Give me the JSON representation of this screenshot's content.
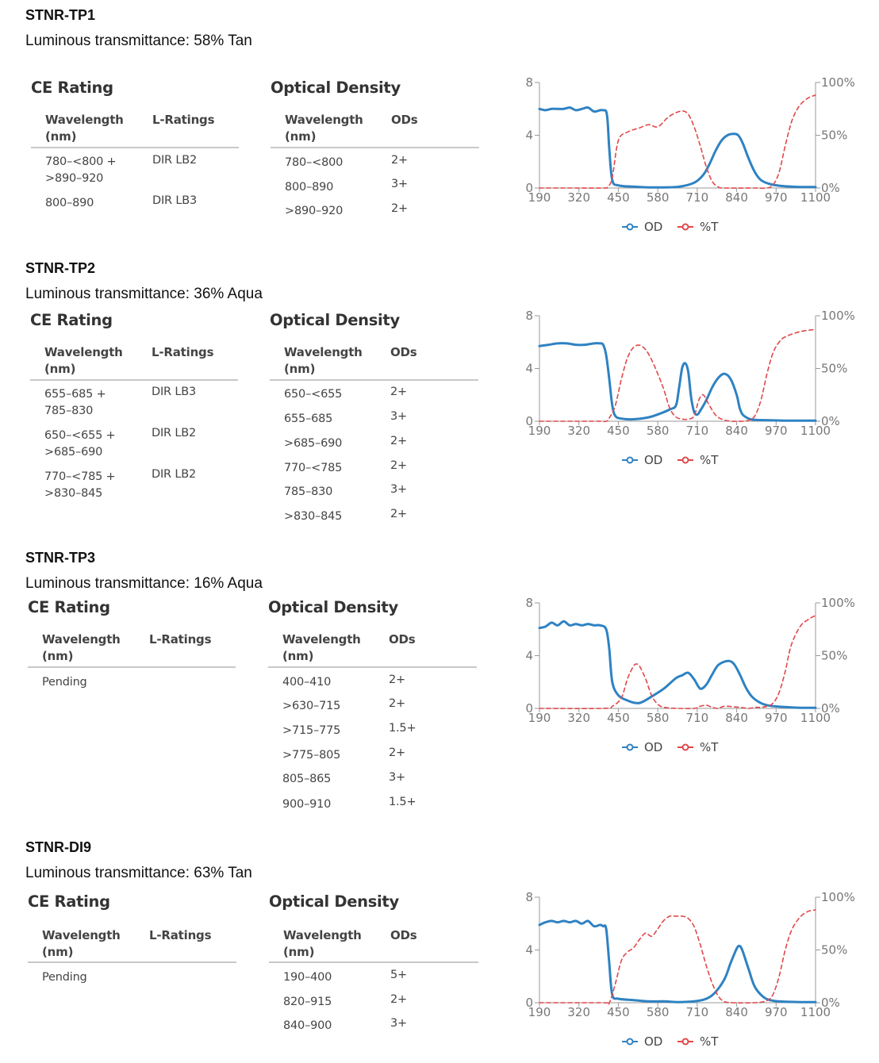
{
  "products": [
    {
      "name": "STNR-TP1",
      "transmittance": "Luminous transmittance: 58% Tan",
      "ce_heading": "CE Rating",
      "od_heading": "Optical Density",
      "ce_columns": [
        "Wavelength (nm)",
        "L-Ratings"
      ],
      "od_columns": [
        "Wavelength (nm)",
        "ODs"
      ],
      "ce_rows": [
        {
          "wavelength": "780–<800 + >890–920",
          "rating": "DIR LB2"
        },
        {
          "wavelength": "800–890",
          "rating": "DIR LB3"
        }
      ],
      "od_rows": [
        {
          "wavelength": "780–<800",
          "od": "2+"
        },
        {
          "wavelength": "800–890",
          "od": "3+"
        },
        {
          "wavelength": ">890–920",
          "od": "2+"
        }
      ]
    },
    {
      "name": "STNR-TP2",
      "transmittance": "Luminous transmittance: 36% Aqua",
      "ce_heading": "CE Rating",
      "od_heading": "Optical Density",
      "ce_columns": [
        "Wavelength (nm)",
        "L-Ratings"
      ],
      "od_columns": [
        "Wavelength (nm)",
        "ODs"
      ],
      "ce_rows": [
        {
          "wavelength": "655–685 + 785–830",
          "rating": "DIR LB3"
        },
        {
          "wavelength": "650–<655 + >685–690",
          "rating": "DIR LB2"
        },
        {
          "wavelength": "770–<785 + >830–845",
          "rating": "DIR LB2"
        }
      ],
      "od_rows": [
        {
          "wavelength": "650–<655",
          "od": "2+"
        },
        {
          "wavelength": "655–685",
          "od": "3+"
        },
        {
          "wavelength": ">685–690",
          "od": "2+"
        },
        {
          "wavelength": "770–<785",
          "od": "2+"
        },
        {
          "wavelength": "785–830",
          "od": "3+"
        },
        {
          "wavelength": ">830–845",
          "od": "2+"
        }
      ]
    },
    {
      "name": "STNR-TP3",
      "transmittance": "Luminous transmittance: 16% Aqua",
      "ce_heading": "CE Rating",
      "od_heading": "Optical Density",
      "ce_columns": [
        "Wavelength (nm)",
        "L-Ratings"
      ],
      "od_columns": [
        "Wavelength (nm)",
        "ODs"
      ],
      "ce_rows": [
        {
          "wavelength": "Pending",
          "rating": ""
        }
      ],
      "od_rows": [
        {
          "wavelength": "400–410",
          "od": "2+"
        },
        {
          "wavelength": ">630–715",
          "od": "2+"
        },
        {
          "wavelength": ">715–775",
          "od": "1.5+"
        },
        {
          "wavelength": ">775–805",
          "od": "2+"
        },
        {
          "wavelength": "805–865",
          "od": "3+"
        },
        {
          "wavelength": "900–910",
          "od": "1.5+"
        }
      ]
    },
    {
      "name": "STNR-DI9",
      "transmittance": "Luminous transmittance: 63% Tan",
      "ce_heading": "CE Rating",
      "od_heading": "Optical Density",
      "ce_columns": [
        "Wavelength (nm)",
        "L-Ratings"
      ],
      "od_columns": [
        "Wavelength (nm)",
        "ODs"
      ],
      "ce_rows": [
        {
          "wavelength": "Pending",
          "rating": ""
        }
      ],
      "od_rows": [
        {
          "wavelength": "190–400",
          "od": "5+"
        },
        {
          "wavelength": "820–915",
          "od": "2+"
        },
        {
          "wavelength": "840–900",
          "od": "3+"
        }
      ]
    }
  ],
  "chart_data": [
    {
      "type": "line",
      "product": "STNR-TP1",
      "x_ticks": [
        "190",
        "320",
        "450",
        "580",
        "710",
        "840",
        "970",
        "1100"
      ],
      "xlim": [
        190,
        1100
      ],
      "y_left_ticks": [
        "0",
        "4",
        "8"
      ],
      "y_left_lim": [
        0,
        8
      ],
      "y_right_ticks": [
        "0%",
        "50%",
        "100%"
      ],
      "y_right_lim": [
        0,
        100
      ],
      "legend": [
        "OD",
        "%T"
      ],
      "legend_position": "bottom-center",
      "colors": {
        "OD": "#2e82c3",
        "%T": "#e0484a"
      },
      "series": [
        {
          "name": "OD",
          "axis": "left",
          "x": [
            190,
            210,
            230,
            250,
            270,
            290,
            310,
            330,
            350,
            370,
            390,
            400,
            410,
            415,
            420,
            430,
            450,
            500,
            550,
            600,
            650,
            700,
            730,
            750,
            770,
            790,
            810,
            830,
            845,
            860,
            880,
            900,
            920,
            950,
            990,
            1050,
            1100
          ],
          "y": [
            6.0,
            5.9,
            6.0,
            6.0,
            6.0,
            6.1,
            5.9,
            6.0,
            6.1,
            5.8,
            5.9,
            5.9,
            5.8,
            5.0,
            3.0,
            0.6,
            0.2,
            0.1,
            0.05,
            0.05,
            0.1,
            0.4,
            1.0,
            1.8,
            2.8,
            3.6,
            4.0,
            4.1,
            4.0,
            3.4,
            2.2,
            1.2,
            0.6,
            0.3,
            0.15,
            0.08,
            0.08
          ]
        },
        {
          "name": "%T",
          "axis": "right",
          "x": [
            190,
            300,
            400,
            415,
            430,
            450,
            480,
            520,
            550,
            580,
            610,
            630,
            660,
            680,
            700,
            720,
            740,
            760,
            780,
            800,
            900,
            940,
            960,
            980,
            1000,
            1020,
            1040,
            1060,
            1080,
            1100
          ],
          "y": [
            0,
            0,
            0,
            1,
            10,
            45,
            53,
            57,
            60,
            58,
            66,
            70,
            73,
            70,
            58,
            40,
            20,
            6,
            1,
            0,
            0,
            0,
            3,
            15,
            40,
            62,
            75,
            82,
            86,
            88
          ]
        }
      ]
    },
    {
      "type": "line",
      "product": "STNR-TP2",
      "x_ticks": [
        "190",
        "320",
        "450",
        "580",
        "710",
        "840",
        "970",
        "1100"
      ],
      "xlim": [
        190,
        1100
      ],
      "y_left_ticks": [
        "0",
        "4",
        "8"
      ],
      "y_left_lim": [
        0,
        8
      ],
      "y_right_ticks": [
        "0%",
        "50%",
        "100%"
      ],
      "y_right_lim": [
        0,
        100
      ],
      "legend": [
        "OD",
        "%T"
      ],
      "legend_position": "bottom-center",
      "colors": {
        "OD": "#2e82c3",
        "%T": "#e0484a"
      },
      "series": [
        {
          "name": "OD",
          "axis": "left",
          "x": [
            190,
            220,
            250,
            280,
            310,
            340,
            370,
            390,
            400,
            410,
            420,
            430,
            440,
            460,
            500,
            550,
            590,
            620,
            640,
            650,
            660,
            670,
            680,
            690,
            700,
            710,
            720,
            740,
            760,
            780,
            800,
            820,
            840,
            850,
            860,
            880,
            900,
            950,
            1000,
            1050,
            1100
          ],
          "y": [
            5.7,
            5.8,
            5.9,
            5.9,
            5.8,
            5.8,
            5.9,
            5.9,
            5.8,
            5.0,
            3.2,
            1.2,
            0.4,
            0.2,
            0.15,
            0.3,
            0.6,
            0.9,
            1.2,
            2.5,
            4.0,
            4.4,
            3.8,
            1.8,
            0.7,
            0.5,
            0.8,
            1.6,
            2.6,
            3.3,
            3.6,
            3.2,
            2.0,
            1.0,
            0.5,
            0.2,
            0.1,
            0.08,
            0.05,
            0.05,
            0.05
          ]
        },
        {
          "name": "%T",
          "axis": "right",
          "x": [
            190,
            380,
            410,
            420,
            440,
            460,
            480,
            500,
            520,
            540,
            560,
            580,
            600,
            620,
            640,
            660,
            680,
            700,
            715,
            730,
            750,
            770,
            790,
            820,
            840,
            860,
            880,
            900,
            920,
            940,
            960,
            980,
            1000,
            1050,
            1100
          ],
          "y": [
            0,
            0,
            0,
            3,
            15,
            40,
            60,
            70,
            72,
            68,
            58,
            45,
            30,
            12,
            4,
            2,
            2,
            5,
            20,
            25,
            15,
            6,
            2,
            0,
            0,
            0,
            1,
            5,
            20,
            45,
            65,
            75,
            80,
            85,
            87
          ]
        }
      ]
    },
    {
      "type": "line",
      "product": "STNR-TP3",
      "x_ticks": [
        "190",
        "320",
        "450",
        "580",
        "710",
        "840",
        "970",
        "1100"
      ],
      "xlim": [
        190,
        1100
      ],
      "y_left_ticks": [
        "0",
        "4",
        "8"
      ],
      "y_left_lim": [
        0,
        8
      ],
      "y_right_ticks": [
        "0%",
        "50%",
        "100%"
      ],
      "y_right_lim": [
        0,
        100
      ],
      "legend": [
        "OD",
        "%T"
      ],
      "legend_position": "bottom-center",
      "colors": {
        "OD": "#2e82c3",
        "%T": "#e0484a"
      },
      "series": [
        {
          "name": "OD",
          "axis": "left",
          "x": [
            190,
            210,
            230,
            250,
            270,
            290,
            310,
            330,
            350,
            370,
            390,
            410,
            420,
            430,
            450,
            480,
            510,
            530,
            560,
            600,
            640,
            660,
            680,
            700,
            720,
            740,
            760,
            780,
            810,
            830,
            850,
            870,
            890,
            920,
            950,
            1000,
            1050,
            1100
          ],
          "y": [
            6.1,
            6.2,
            6.5,
            6.3,
            6.6,
            6.3,
            6.4,
            6.3,
            6.4,
            6.3,
            6.3,
            6.0,
            4.5,
            2.0,
            1.0,
            0.6,
            0.4,
            0.5,
            0.9,
            1.5,
            2.3,
            2.5,
            2.7,
            2.2,
            1.5,
            1.8,
            2.6,
            3.3,
            3.6,
            3.4,
            2.6,
            1.6,
            0.9,
            0.4,
            0.2,
            0.1,
            0.05,
            0.05
          ]
        },
        {
          "name": "%T",
          "axis": "right",
          "x": [
            190,
            400,
            430,
            460,
            480,
            500,
            510,
            520,
            540,
            560,
            580,
            600,
            650,
            700,
            720,
            740,
            760,
            780,
            800,
            850,
            880,
            900,
            920,
            940,
            960,
            980,
            1000,
            1020,
            1050,
            1080,
            1100
          ],
          "y": [
            0,
            0,
            2,
            10,
            28,
            40,
            42,
            40,
            28,
            12,
            4,
            1,
            0,
            0,
            2,
            3,
            1,
            0,
            2,
            1,
            0,
            1,
            1,
            2,
            5,
            15,
            35,
            60,
            78,
            85,
            88
          ]
        }
      ]
    },
    {
      "type": "line",
      "product": "STNR-DI9",
      "x_ticks": [
        "190",
        "320",
        "450",
        "580",
        "710",
        "840",
        "970",
        "1100"
      ],
      "xlim": [
        190,
        1100
      ],
      "y_left_ticks": [
        "0",
        "4",
        "8"
      ],
      "y_left_lim": [
        0,
        8
      ],
      "y_right_ticks": [
        "0%",
        "50%",
        "100%"
      ],
      "y_right_lim": [
        0,
        100
      ],
      "legend": [
        "OD",
        "%T"
      ],
      "legend_position": "bottom-center",
      "colors": {
        "OD": "#2e82c3",
        "%T": "#e0484a"
      },
      "series": [
        {
          "name": "OD",
          "axis": "left",
          "x": [
            190,
            210,
            230,
            250,
            270,
            290,
            310,
            330,
            350,
            370,
            390,
            400,
            410,
            420,
            430,
            450,
            500,
            550,
            600,
            650,
            700,
            740,
            770,
            800,
            820,
            840,
            850,
            860,
            880,
            900,
            930,
            960,
            1000,
            1050,
            1100
          ],
          "y": [
            5.9,
            6.1,
            6.2,
            6.1,
            6.2,
            6.1,
            6.2,
            6.0,
            6.2,
            5.8,
            5.9,
            5.8,
            5.6,
            3.0,
            0.6,
            0.3,
            0.2,
            0.1,
            0.1,
            0.05,
            0.1,
            0.3,
            0.8,
            1.8,
            3.0,
            4.1,
            4.3,
            3.9,
            2.5,
            1.2,
            0.4,
            0.15,
            0.08,
            0.05,
            0.05
          ]
        },
        {
          "name": "%T",
          "axis": "right",
          "x": [
            190,
            400,
            420,
            440,
            460,
            480,
            500,
            520,
            540,
            560,
            580,
            600,
            620,
            640,
            660,
            680,
            700,
            720,
            740,
            760,
            780,
            800,
            830,
            900,
            940,
            960,
            980,
            1000,
            1020,
            1040,
            1060,
            1080,
            1100
          ],
          "y": [
            0,
            0,
            0,
            18,
            40,
            48,
            52,
            60,
            66,
            63,
            70,
            78,
            82,
            82,
            82,
            80,
            72,
            55,
            35,
            18,
            6,
            1,
            0,
            0,
            2,
            8,
            25,
            50,
            68,
            78,
            84,
            87,
            88
          ]
        }
      ]
    }
  ]
}
